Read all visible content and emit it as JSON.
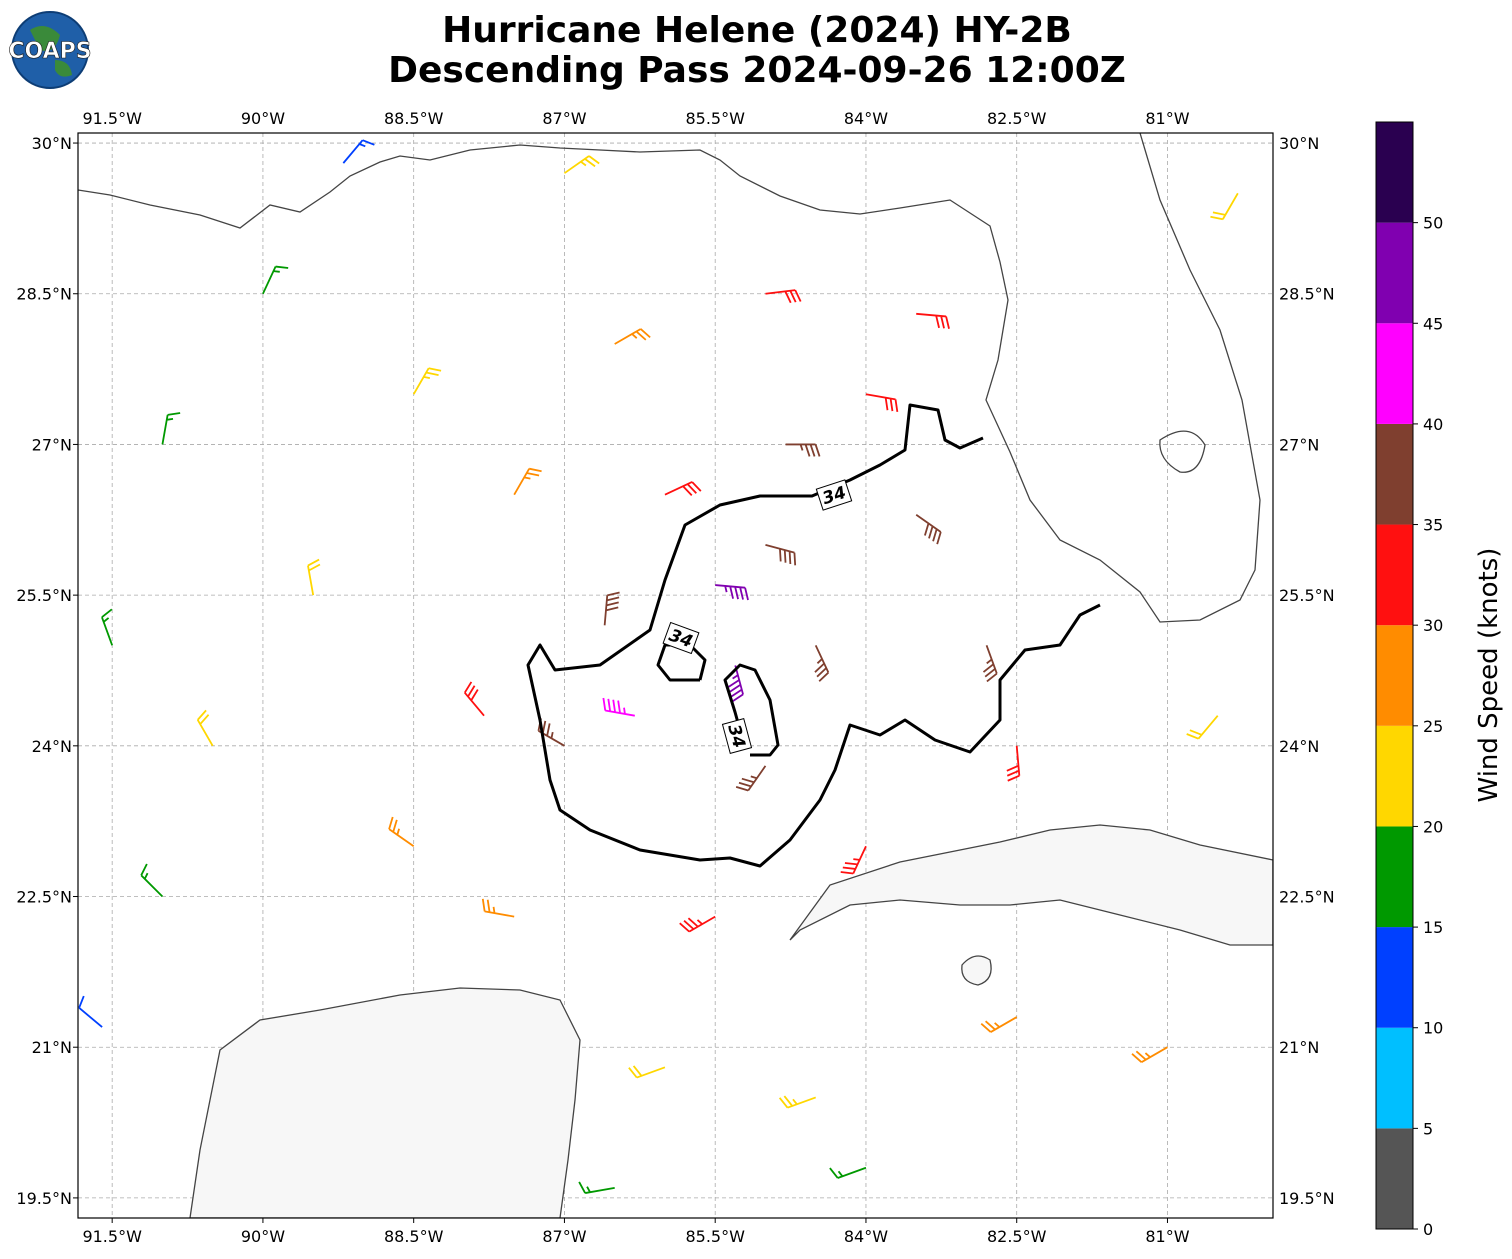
{
  "map": {
    "title": [
      "Hurricane Helene (2024) HY-2B",
      "Descending Pass 2024-09-26 12:00Z"
    ],
    "logo": "COAPS",
    "lonlim": [
      -91.84,
      -79.95
    ],
    "latlim": [
      19.3,
      30.1
    ],
    "lon_ticks": [
      {
        "value": -91.5,
        "label": "91.5°W"
      },
      {
        "value": -90,
        "label": "90°W"
      },
      {
        "value": -88.5,
        "label": "88.5°W"
      },
      {
        "value": -87,
        "label": "87°W"
      },
      {
        "value": -85.5,
        "label": "85.5°W"
      },
      {
        "value": -84,
        "label": "84°W"
      },
      {
        "value": -82.5,
        "label": "82.5°W"
      },
      {
        "value": -81,
        "label": "81°W"
      }
    ],
    "lat_ticks": [
      {
        "value": 19.5,
        "label": "19.5°N"
      },
      {
        "value": 21,
        "label": "21°N"
      },
      {
        "value": 22.5,
        "label": "22.5°N"
      },
      {
        "value": 24,
        "label": "24°N"
      },
      {
        "value": 25.5,
        "label": "25.5°N"
      },
      {
        "value": 27,
        "label": "27°N"
      },
      {
        "value": 28.5,
        "label": "28.5°N"
      },
      {
        "value": 30,
        "label": "30°N"
      }
    ],
    "grid": true,
    "contour_level": 34,
    "colorbar": {
      "label": "Wind Speed (knots)",
      "levels": [
        0,
        5,
        10,
        15,
        20,
        25,
        30,
        35,
        40,
        45,
        50,
        55
      ],
      "colors": [
        "#555555",
        "#00bfff",
        "#0040ff",
        "#009900",
        "#ffd700",
        "#ff8c00",
        "#ff1010",
        "#7f3f2f",
        "#ff00ff",
        "#8000b0",
        "#2a0050"
      ],
      "ticks": [
        0,
        5,
        10,
        15,
        20,
        25,
        30,
        35,
        40,
        45,
        50
      ]
    },
    "barbs": [
      {
        "lon": -85.5,
        "lat": 25.6,
        "speed": 47,
        "dir": 95
      },
      {
        "lon": -86.3,
        "lat": 24.3,
        "speed": 43,
        "dir": 280
      },
      {
        "lon": -85.3,
        "lat": 24.8,
        "speed": 45,
        "dir": 165
      },
      {
        "lon": -86.6,
        "lat": 25.2,
        "speed": 38,
        "dir": 5
      },
      {
        "lon": -85.0,
        "lat": 26.0,
        "speed": 38,
        "dir": 105
      },
      {
        "lon": -84.5,
        "lat": 25.0,
        "speed": 37,
        "dir": 155
      },
      {
        "lon": -85.0,
        "lat": 23.8,
        "speed": 37,
        "dir": 215
      },
      {
        "lon": -87.0,
        "lat": 24.0,
        "speed": 37,
        "dir": 300
      },
      {
        "lon": -86.0,
        "lat": 26.5,
        "speed": 30,
        "dir": 65
      },
      {
        "lon": -84.0,
        "lat": 27.5,
        "speed": 32,
        "dir": 100
      },
      {
        "lon": -85.0,
        "lat": 28.5,
        "speed": 32,
        "dir": 83
      },
      {
        "lon": -83.5,
        "lat": 26.3,
        "speed": 38,
        "dir": 125
      },
      {
        "lon": -82.8,
        "lat": 25.0,
        "speed": 37,
        "dir": 160
      },
      {
        "lon": -82.5,
        "lat": 24.0,
        "speed": 32,
        "dir": 175
      },
      {
        "lon": -84.0,
        "lat": 23.0,
        "speed": 33,
        "dir": 205
      },
      {
        "lon": -85.5,
        "lat": 22.3,
        "speed": 33,
        "dir": 240
      },
      {
        "lon": -87.8,
        "lat": 24.3,
        "speed": 32,
        "dir": 320
      },
      {
        "lon": -87.5,
        "lat": 26.5,
        "speed": 27,
        "dir": 30
      },
      {
        "lon": -86.5,
        "lat": 28.0,
        "speed": 27,
        "dir": 60
      },
      {
        "lon": -87.0,
        "lat": 29.7,
        "speed": 23,
        "dir": 55
      },
      {
        "lon": -88.5,
        "lat": 27.5,
        "speed": 23,
        "dir": 30
      },
      {
        "lon": -89.5,
        "lat": 25.5,
        "speed": 22,
        "dir": 350
      },
      {
        "lon": -88.5,
        "lat": 23.0,
        "speed": 27,
        "dir": 305
      },
      {
        "lon": -87.5,
        "lat": 22.3,
        "speed": 25,
        "dir": 280
      },
      {
        "lon": -90.0,
        "lat": 28.5,
        "speed": 17,
        "dir": 25
      },
      {
        "lon": -91.0,
        "lat": 27.0,
        "speed": 17,
        "dir": 10
      },
      {
        "lon": -91.5,
        "lat": 25.0,
        "speed": 17,
        "dir": 340
      },
      {
        "lon": -91.0,
        "lat": 22.5,
        "speed": 17,
        "dir": 315
      },
      {
        "lon": -91.6,
        "lat": 21.2,
        "speed": 12,
        "dir": 310
      },
      {
        "lon": -89.2,
        "lat": 29.8,
        "speed": 13,
        "dir": 40
      },
      {
        "lon": -90.5,
        "lat": 24.0,
        "speed": 22,
        "dir": 330
      },
      {
        "lon": -86.0,
        "lat": 20.8,
        "speed": 22,
        "dir": 250
      },
      {
        "lon": -84.5,
        "lat": 20.5,
        "speed": 23,
        "dir": 250
      },
      {
        "lon": -82.5,
        "lat": 21.3,
        "speed": 27,
        "dir": 240
      },
      {
        "lon": -81.0,
        "lat": 21.0,
        "speed": 27,
        "dir": 240
      },
      {
        "lon": -80.5,
        "lat": 24.3,
        "speed": 22,
        "dir": 220
      },
      {
        "lon": -80.3,
        "lat": 29.5,
        "speed": 22,
        "dir": 210
      },
      {
        "lon": -84.0,
        "lat": 19.8,
        "speed": 17,
        "dir": 250
      },
      {
        "lon": -86.5,
        "lat": 19.6,
        "speed": 17,
        "dir": 260
      },
      {
        "lon": -83.5,
        "lat": 28.3,
        "speed": 32,
        "dir": 95
      },
      {
        "lon": -84.8,
        "lat": 27.0,
        "speed": 35,
        "dir": 90
      }
    ]
  }
}
